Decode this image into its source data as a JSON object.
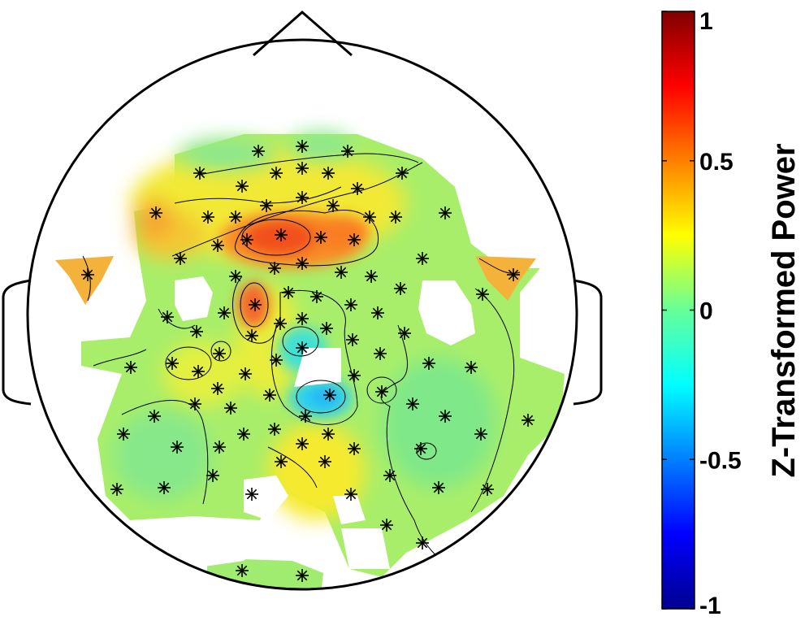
{
  "chart_data": {
    "type": "heatmap",
    "subtype": "scalp-topography",
    "colorbar": {
      "title": "Z-Transformed Power",
      "range": [
        -1,
        1
      ],
      "ticks": [
        {
          "value": 1,
          "label": "1"
        },
        {
          "value": 0.5,
          "label": "0.5"
        },
        {
          "value": 0,
          "label": "0"
        },
        {
          "value": -0.5,
          "label": "-0.5"
        },
        {
          "value": -1,
          "label": "-1"
        }
      ],
      "colormap": "jet"
    },
    "hotspots": [
      {
        "name": "frontal-central-peak",
        "value": 0.75
      },
      {
        "name": "frontal-left",
        "value": 0.55
      },
      {
        "name": "left-temporal-patch",
        "value": 0.5
      },
      {
        "name": "right-temporal-patch",
        "value": 0.5
      },
      {
        "name": "central-left-spot",
        "value": 0.6
      },
      {
        "name": "central-minimum-upper",
        "value": -0.4
      },
      {
        "name": "central-minimum-lower",
        "value": -0.45
      }
    ],
    "electrodes_marker": "asterisk"
  }
}
